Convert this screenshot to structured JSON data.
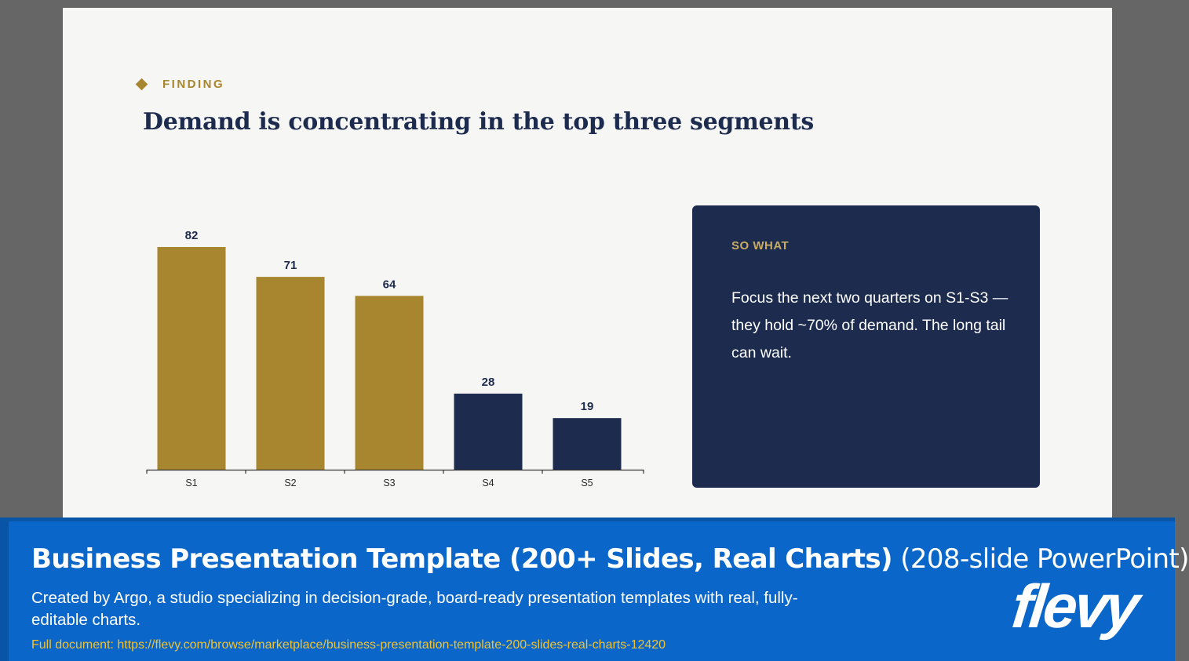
{
  "slide": {
    "eyebrow": "FINDING",
    "title": "Demand is concentrating in the top three segments",
    "callout": {
      "label": "SO WHAT",
      "text": "Focus the next two quarters on S1-S3 — they hold ~70% of demand. The long tail can wait."
    }
  },
  "chart_data": {
    "type": "bar",
    "categories": [
      "S1",
      "S2",
      "S3",
      "S4",
      "S5"
    ],
    "values": [
      82,
      71,
      64,
      28,
      19
    ],
    "data_labels": [
      "82",
      "71",
      "64",
      "28",
      "19"
    ],
    "bar_colors": [
      "#a8862f",
      "#a8862f",
      "#a8862f",
      "#1c2b4e",
      "#1c2b4e"
    ],
    "title": "",
    "xlabel": "",
    "ylabel": "",
    "ylim": [
      0,
      82
    ],
    "grid": false,
    "legend": "none"
  },
  "colors": {
    "gold": "#a8862f",
    "navy": "#1c2b4e",
    "banner_blue": "#0a67c9",
    "url_yellow": "#f2c230"
  },
  "banner": {
    "title_bold": "Business Presentation Template (200+ Slides, Real Charts)",
    "title_light": "(208-slide PowerPoint)",
    "description": "Created by Argo, a studio specializing in decision-grade, board-ready presentation templates with real, fully-editable charts.",
    "url_text": "Full document: https://flevy.com/browse/marketplace/business-presentation-template-200-slides-real-charts-12420",
    "logo_text": "flevy"
  }
}
